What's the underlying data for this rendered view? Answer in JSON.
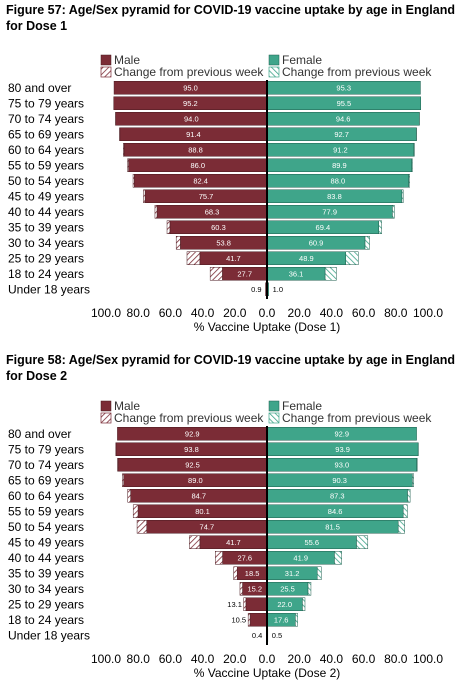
{
  "colors": {
    "male": "#7B2C36",
    "female": "#3FA58A",
    "male_stroke": "#4a1a20",
    "female_stroke": "#1f5e4e"
  },
  "charts": [
    {
      "title": "Figure 57: Age/Sex pyramid for COVID-19 vaccine uptake by age in England for Dose 1",
      "legend": {
        "male": "Male",
        "female": "Female",
        "male_change": "Change from previous week",
        "female_change": "Change from previous week"
      },
      "xlabel": "% Vaccine Uptake (Dose 1)",
      "ticks": [
        "100.0",
        "80.0",
        "60.0",
        "40.0",
        "20.0",
        "0.0",
        "20.0",
        "40.0",
        "60.0",
        "80.0",
        "100.0"
      ]
    },
    {
      "title": "Figure 58: Age/Sex pyramid for COVID-19 vaccine uptake by age in England for Dose 2",
      "legend": {
        "male": "Male",
        "female": "Female",
        "male_change": "Change from previous week",
        "female_change": "Change from previous week"
      },
      "xlabel": "% Vaccine Uptake (Dose 2)",
      "ticks": [
        "100.0",
        "80.0",
        "60.0",
        "40.0",
        "20.0",
        "0.0",
        "20.0",
        "40.0",
        "60.0",
        "80.0",
        "100.0"
      ]
    }
  ],
  "chart_data": [
    {
      "type": "bar",
      "orientation": "horizontal-pyramid",
      "categories": [
        "80 and over",
        "75 to 79 years",
        "70 to 74 years",
        "65 to 69 years",
        "60 to 64 years",
        "55 to 59 years",
        "50 to 54 years",
        "45 to 49 years",
        "40 to 44 years",
        "35 to 39 years",
        "30 to 34 years",
        "25 to 29 years",
        "18 to 24 years",
        "Under 18 years"
      ],
      "series": [
        {
          "name": "Male",
          "values": [
            95.0,
            95.2,
            94.0,
            91.4,
            88.8,
            86.0,
            82.4,
            75.7,
            68.3,
            60.3,
            53.8,
            41.7,
            27.7,
            0.9
          ]
        },
        {
          "name": "Female",
          "values": [
            95.3,
            95.5,
            94.6,
            92.7,
            91.2,
            89.9,
            88.0,
            83.8,
            77.9,
            69.4,
            60.9,
            48.9,
            36.1,
            1.0
          ]
        },
        {
          "name": "Change from previous week",
          "side": "male",
          "values": [
            0.0,
            0.0,
            0.1,
            0.2,
            0.4,
            0.6,
            0.8,
            1.0,
            1.3,
            1.8,
            2.6,
            8.0,
            7.6,
            0.0
          ]
        },
        {
          "name": "Change from previous week",
          "side": "female",
          "values": [
            0.0,
            0.0,
            0.1,
            0.2,
            0.3,
            0.4,
            0.6,
            0.8,
            1.2,
            1.8,
            2.8,
            7.8,
            7.0,
            0.0
          ]
        }
      ],
      "xlabel": "% Vaccine Uptake (Dose 1)",
      "xlim": [
        -100,
        100
      ]
    },
    {
      "type": "bar",
      "orientation": "horizontal-pyramid",
      "categories": [
        "80 and over",
        "75 to 79 years",
        "70 to 74 years",
        "65 to 69 years",
        "60 to 64 years",
        "55 to 59 years",
        "50 to 54 years",
        "45 to 49 years",
        "40 to 44 years",
        "35 to 39 years",
        "30 to 34 years",
        "25 to 29 years",
        "18 to 24 years",
        "Under 18 years"
      ],
      "series": [
        {
          "name": "Male",
          "values": [
            92.9,
            93.8,
            92.5,
            89.0,
            84.7,
            80.1,
            74.7,
            41.7,
            27.6,
            18.5,
            15.2,
            13.1,
            10.5,
            0.4
          ]
        },
        {
          "name": "Female",
          "values": [
            92.9,
            93.9,
            93.0,
            90.3,
            87.3,
            84.6,
            81.5,
            55.6,
            41.9,
            31.2,
            25.5,
            22.0,
            17.6,
            0.5
          ]
        },
        {
          "name": "Change from previous week",
          "side": "male",
          "values": [
            0.0,
            0.1,
            0.3,
            0.8,
            1.8,
            3.0,
            6.0,
            6.5,
            4.5,
            2.2,
            1.6,
            1.4,
            1.2,
            0.0
          ]
        },
        {
          "name": "Change from previous week",
          "side": "female",
          "values": [
            0.0,
            0.1,
            0.3,
            0.8,
            1.6,
            2.6,
            4.0,
            7.0,
            4.5,
            2.5,
            1.8,
            1.6,
            1.4,
            0.0
          ]
        }
      ],
      "xlabel": "% Vaccine Uptake (Dose 2)",
      "xlim": [
        -100,
        100
      ]
    }
  ]
}
